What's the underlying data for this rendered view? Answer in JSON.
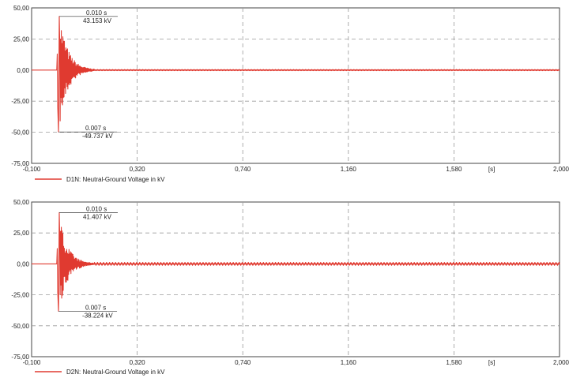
{
  "chart_data": [
    {
      "type": "line",
      "title": "",
      "xlabel": "",
      "x_unit": "[s]",
      "xlim": [
        -0.1,
        2.0
      ],
      "ylim": [
        -75,
        50
      ],
      "x_ticks": [
        "-0,100",
        "0,320",
        "0,740",
        "1,160",
        "1,580",
        "2,000"
      ],
      "y_ticks": [
        "50,00",
        "25,00",
        "0,00",
        "-25,00",
        "-50,00",
        "-75,00"
      ],
      "grid": true,
      "legend_position": "bottom-left",
      "colors": {
        "series": "#e03a30"
      },
      "series": [
        {
          "name": "D1N: Neutral-Ground Voltage in kV",
          "transient": {
            "t_start": 0.0,
            "t_end": 0.15,
            "peak_max": 43.153,
            "peak_min": -49.737
          },
          "points": [
            [
              -0.1,
              0
            ],
            [
              0.0,
              0
            ],
            [
              0.007,
              -49.737
            ],
            [
              0.01,
              43.153
            ],
            [
              0.03,
              20
            ],
            [
              0.06,
              -8
            ],
            [
              0.1,
              2
            ],
            [
              0.15,
              0
            ],
            [
              2.0,
              0
            ]
          ]
        }
      ],
      "annotations": [
        {
          "time": "0.010 s",
          "value": "43.153 kV",
          "x": 0.01,
          "y": 43.153
        },
        {
          "time": "0.007 s",
          "value": "-49.737 kV",
          "x": 0.007,
          "y": -49.737
        }
      ]
    },
    {
      "type": "line",
      "title": "",
      "xlabel": "",
      "x_unit": "[s]",
      "xlim": [
        -0.1,
        2.0
      ],
      "ylim": [
        -75,
        50
      ],
      "x_ticks": [
        "-0,100",
        "0,320",
        "0,740",
        "1,160",
        "1,580",
        "2,000"
      ],
      "y_ticks": [
        "50,00",
        "25,00",
        "0,00",
        "-25,00",
        "-50,00",
        "-75,00"
      ],
      "grid": true,
      "legend_position": "bottom-left",
      "colors": {
        "series": "#e03a30"
      },
      "series": [
        {
          "name": "D2N: Neutral-Ground Voltage in kV",
          "transient": {
            "t_start": 0.0,
            "t_end": 0.15,
            "peak_max": 41.407,
            "peak_min": -38.224
          },
          "points": [
            [
              -0.1,
              0
            ],
            [
              0.0,
              0
            ],
            [
              0.007,
              -38.224
            ],
            [
              0.01,
              41.407
            ],
            [
              0.03,
              18
            ],
            [
              0.06,
              -7
            ],
            [
              0.1,
              2
            ],
            [
              0.15,
              0
            ],
            [
              2.0,
              0
            ]
          ]
        }
      ],
      "annotations": [
        {
          "time": "0.010 s",
          "value": "41.407 kV",
          "x": 0.01,
          "y": 41.407
        },
        {
          "time": "0.007 s",
          "value": "-38.224 kV",
          "x": 0.007,
          "y": -38.224
        }
      ]
    }
  ]
}
